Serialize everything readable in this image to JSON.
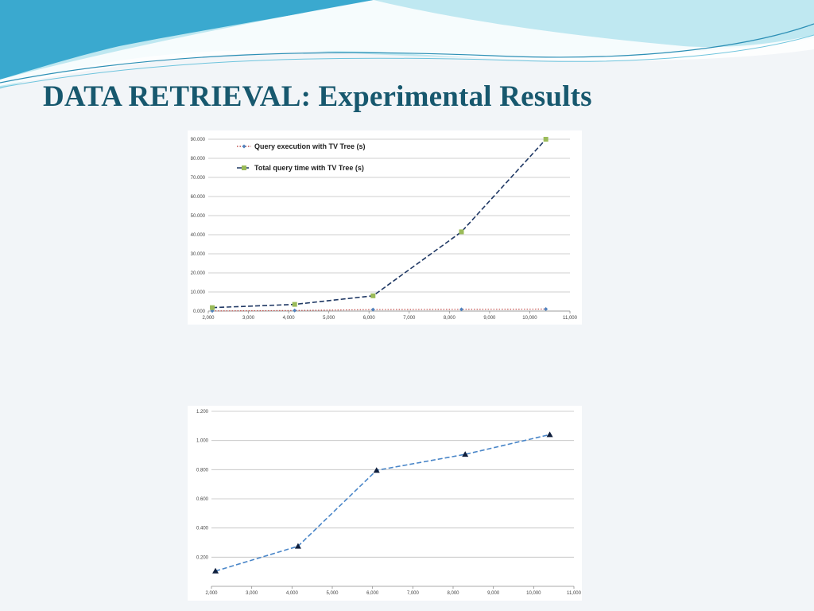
{
  "slide": {
    "title": "DATA RETRIEVAL: Experimental Results",
    "colors": {
      "title": "#17586e",
      "wave_dark": "#3aa9cf",
      "wave_light": "#bfe8f1",
      "background": "#f2f5f8"
    }
  },
  "chart_data": [
    {
      "type": "line",
      "title": "",
      "xlabel": "",
      "ylabel": "",
      "xlim": [
        2000,
        11000
      ],
      "ylim": [
        0,
        90
      ],
      "x_ticks": [
        "2,000",
        "3,000",
        "4,000",
        "5,000",
        "6,000",
        "7,000",
        "8,000",
        "9,000",
        "10,000",
        "11,000"
      ],
      "y_ticks": [
        "0.000",
        "10.000",
        "20.000",
        "30.000",
        "40.000",
        "50.000",
        "60.000",
        "70.000",
        "80.000",
        "90.000"
      ],
      "grid": "horizontal",
      "legend_position": "top-left",
      "series": [
        {
          "name": "Query execution with TV Tree (s)",
          "color": "#c0504d",
          "marker": "diamond",
          "marker_color": "#4f81bd",
          "line_style": "dotted",
          "x": [
            2100,
            4150,
            6100,
            8300,
            10400
          ],
          "y": [
            0.1,
            0.3,
            0.8,
            0.9,
            1.05
          ]
        },
        {
          "name": "Total query time with TV Tree (s)",
          "color": "#1f3864",
          "marker": "square",
          "marker_color": "#9bbb59",
          "line_style": "dashed",
          "x": [
            2100,
            4150,
            6100,
            8300,
            10400
          ],
          "y": [
            1.8,
            3.5,
            8.0,
            41.5,
            90.0
          ]
        }
      ]
    },
    {
      "type": "line",
      "title": "",
      "xlabel": "",
      "ylabel": "",
      "xlim": [
        2000,
        11000
      ],
      "ylim": [
        0,
        1.2
      ],
      "x_ticks": [
        "2,000",
        "3,000",
        "4,000",
        "5,000",
        "6,000",
        "7,000",
        "8,000",
        "9,000",
        "10,000",
        "11,000"
      ],
      "y_ticks": [
        "0.200",
        "0.400",
        "0.600",
        "0.800",
        "1.000",
        "1.200"
      ],
      "grid": "horizontal",
      "series": [
        {
          "color": "#4a86c8",
          "marker": "triangle",
          "marker_color": "#0f1f3d",
          "line_style": "dashed",
          "x": [
            2100,
            4150,
            6100,
            8300,
            10400
          ],
          "y": [
            0.105,
            0.275,
            0.795,
            0.905,
            1.04
          ]
        }
      ]
    }
  ]
}
